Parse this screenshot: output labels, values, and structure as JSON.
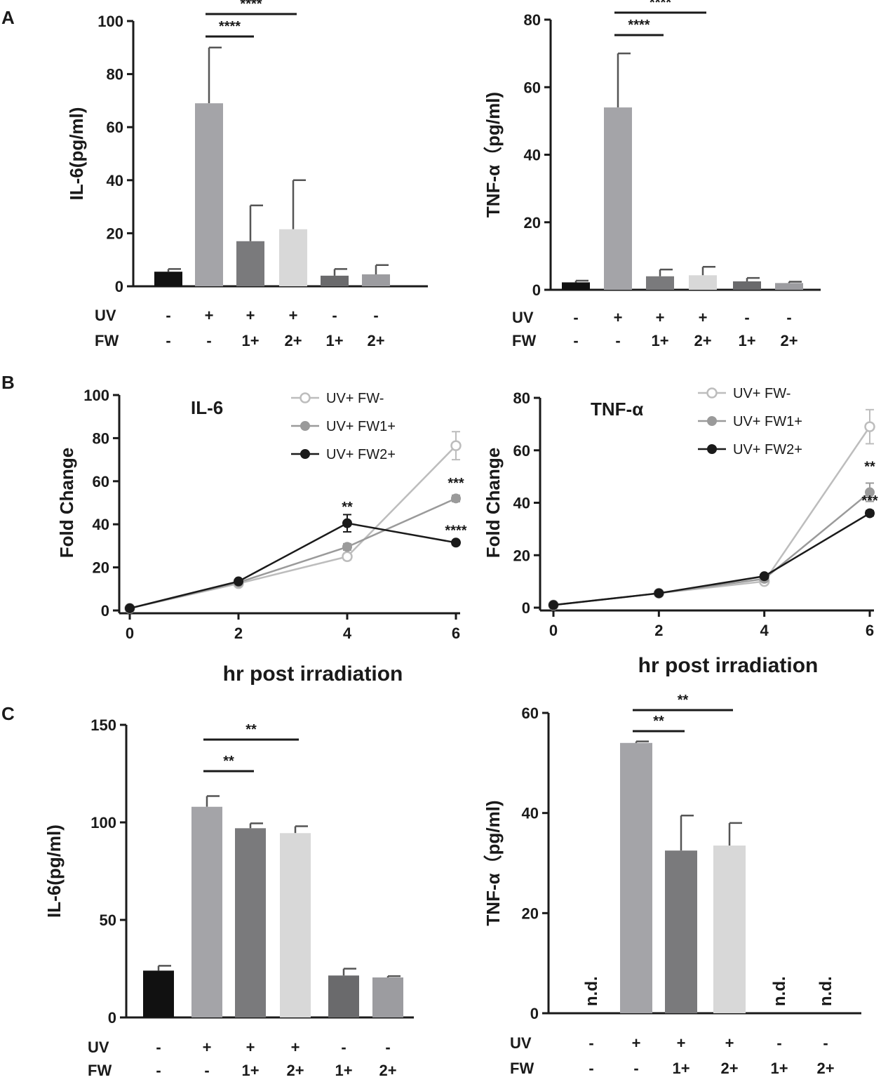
{
  "panels": {
    "A": "A",
    "B": "B",
    "C": "C"
  },
  "conditions": {
    "uv_label": "UV",
    "fw_label": "FW",
    "uv": [
      "-",
      "+",
      "+",
      "+",
      "-",
      "-"
    ],
    "fw": [
      "-",
      "-",
      "1+",
      "2+",
      "1+",
      "2+"
    ]
  },
  "colors": {
    "bars": [
      "#111111",
      "#a4a4a8",
      "#7a7a7c",
      "#d8d8d8",
      "#6a6a6c",
      "#9c9ca0"
    ],
    "series": [
      "#bdbdbd",
      "#9a9a9a",
      "#1a1a1a"
    ]
  },
  "chart_data": [
    {
      "id": "A1",
      "type": "bar",
      "title": "",
      "xlabel": "",
      "ylabel": "IL-6(pg/ml)",
      "ylim": [
        0,
        100
      ],
      "yticks": [
        0,
        20,
        40,
        60,
        80,
        100
      ],
      "values": [
        5.5,
        69,
        17,
        21.5,
        4,
        4.5
      ],
      "errors": [
        1,
        21,
        13.5,
        18.5,
        2.5,
        3.5
      ],
      "sig": [
        {
          "from": 1,
          "to": 2,
          "label": "****"
        },
        {
          "from": 1,
          "to": 3,
          "label": "****"
        }
      ],
      "nd": []
    },
    {
      "id": "A2",
      "type": "bar",
      "title": "",
      "xlabel": "",
      "ylabel": "TNF-α（pg/ml)",
      "ylim": [
        0,
        80
      ],
      "yticks": [
        0,
        20,
        40,
        60,
        80
      ],
      "values": [
        2.2,
        54,
        4,
        4.3,
        2.5,
        2
      ],
      "errors": [
        0.5,
        16,
        2,
        2.5,
        1,
        0.4
      ],
      "sig": [
        {
          "from": 1,
          "to": 2,
          "label": "****"
        },
        {
          "from": 1,
          "to": 3,
          "label": "****"
        }
      ],
      "nd": []
    },
    {
      "id": "B1",
      "type": "line",
      "title": "IL-6",
      "xlabel": "hr post irradiation",
      "ylabel": "Fold Change",
      "xlim": [
        0,
        6
      ],
      "ylim": [
        0,
        100
      ],
      "xticks": [
        0,
        2,
        4,
        6
      ],
      "yticks": [
        0,
        20,
        40,
        60,
        80,
        100
      ],
      "x": [
        0,
        2,
        4,
        6
      ],
      "series": [
        {
          "name": "UV+ FW-",
          "values": [
            1,
            12.5,
            25,
            76.5
          ],
          "errors": [
            0,
            0.5,
            1.5,
            6.5
          ],
          "marker": "open"
        },
        {
          "name": "UV+ FW1+",
          "values": [
            1,
            13,
            29.5,
            52
          ],
          "errors": [
            0,
            0.5,
            1.5,
            1.5
          ],
          "marker": "filled"
        },
        {
          "name": "UV+ FW2+",
          "values": [
            1,
            13.5,
            40.5,
            31.5
          ],
          "errors": [
            0,
            0.5,
            4,
            1
          ],
          "marker": "filled"
        }
      ],
      "annotations": [
        {
          "x": 4,
          "y": 46,
          "text": "**"
        },
        {
          "x": 6,
          "y": 57,
          "text": "***"
        },
        {
          "x": 6,
          "y": 35,
          "text": "****"
        }
      ]
    },
    {
      "id": "B2",
      "type": "line",
      "title": "TNF-α",
      "xlabel": "hr post irradiation",
      "ylabel": "Fold Change",
      "xlim": [
        0,
        6
      ],
      "ylim": [
        0,
        80
      ],
      "xticks": [
        0,
        2,
        4,
        6
      ],
      "yticks": [
        0,
        20,
        40,
        60,
        80
      ],
      "x": [
        0,
        2,
        4,
        6
      ],
      "series": [
        {
          "name": "UV+ FW-",
          "values": [
            1,
            5.5,
            10,
            69
          ],
          "errors": [
            0,
            0.3,
            1,
            6.5
          ],
          "marker": "open"
        },
        {
          "name": "UV+ FW1+",
          "values": [
            1,
            5.5,
            11,
            44
          ],
          "errors": [
            0,
            0.3,
            0.8,
            3.5
          ],
          "marker": "filled"
        },
        {
          "name": "UV+ FW2+",
          "values": [
            1,
            5.5,
            12,
            36
          ],
          "errors": [
            0,
            0.3,
            0.5,
            1
          ],
          "marker": "filled"
        }
      ],
      "annotations": [
        {
          "x": 6,
          "y": 52,
          "text": "**"
        },
        {
          "x": 6,
          "y": 39,
          "text": "***"
        }
      ]
    },
    {
      "id": "C1",
      "type": "bar",
      "title": "",
      "xlabel": "",
      "ylabel": "IL-6(pg/ml)",
      "ylim": [
        0,
        150
      ],
      "yticks": [
        0,
        50,
        100,
        150
      ],
      "values": [
        24,
        108,
        97,
        94.5,
        21.5,
        20.5
      ],
      "errors": [
        2.5,
        5.5,
        2.5,
        3.5,
        3.5,
        0.7
      ],
      "sig": [
        {
          "from": 1,
          "to": 2,
          "label": "**"
        },
        {
          "from": 1,
          "to": 3,
          "label": "**"
        }
      ],
      "nd": []
    },
    {
      "id": "C2",
      "type": "bar",
      "title": "",
      "xlabel": "",
      "ylabel": "TNF-α（pg/ml)",
      "ylim": [
        0,
        60
      ],
      "yticks": [
        0,
        20,
        40,
        60
      ],
      "values": [
        null,
        54,
        32.5,
        33.5,
        null,
        null
      ],
      "errors": [
        0,
        0.3,
        7,
        4.5,
        0,
        0
      ],
      "sig": [
        {
          "from": 1,
          "to": 2,
          "label": "**"
        },
        {
          "from": 1,
          "to": 3,
          "label": "**"
        }
      ],
      "nd": [
        0,
        4,
        5
      ],
      "nd_label": "n.d."
    }
  ]
}
